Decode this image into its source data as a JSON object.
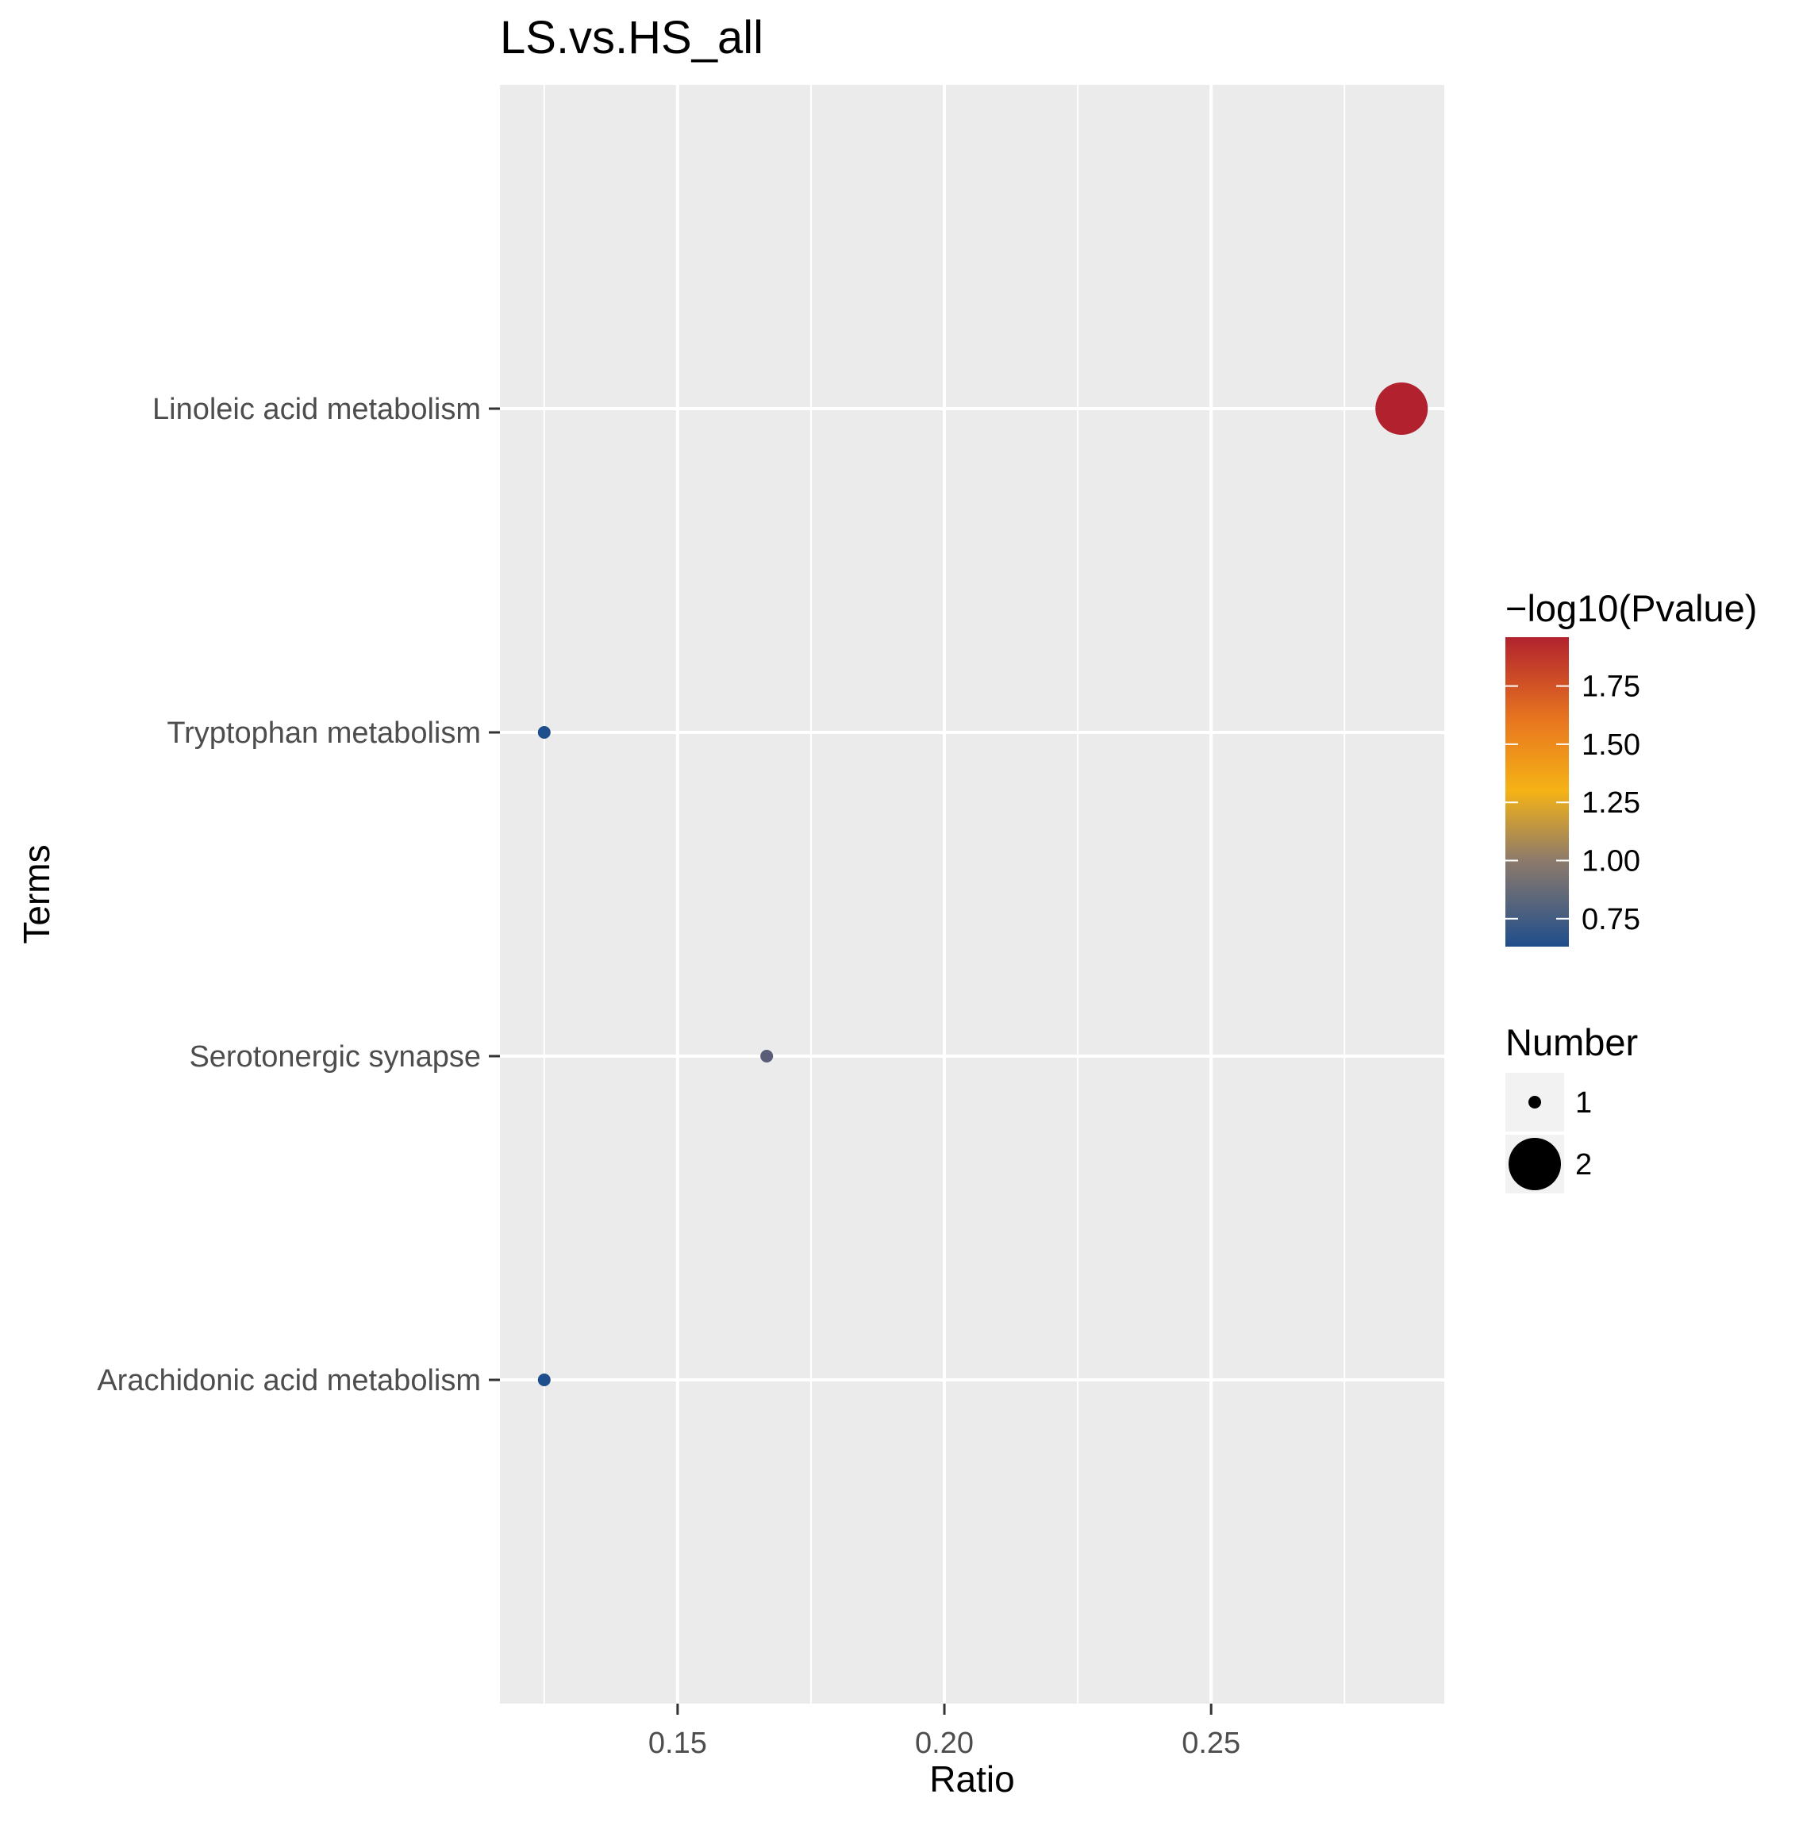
{
  "chart_data": {
    "type": "scatter",
    "title": "LS.vs.HS_all",
    "xlabel": "Ratio",
    "ylabel": "Terms",
    "xlim": [
      0.1167,
      0.2937
    ],
    "x_ticks": [
      0.15,
      0.2,
      0.25
    ],
    "x_tick_labels": [
      "0.15",
      "0.20",
      "0.25"
    ],
    "x_minor_gridlines": [
      0.125,
      0.175,
      0.225,
      0.275
    ],
    "categories": [
      "Linoleic acid metabolism",
      "Tryptophan metabolism",
      "Serotonergic synapse",
      "Arachidonic acid metabolism"
    ],
    "points": [
      {
        "term": "Linoleic acid metabolism",
        "ratio": 0.2857,
        "number": 2,
        "neg_log10_pvalue": 1.95,
        "color": "#b2222e"
      },
      {
        "term": "Tryptophan metabolism",
        "ratio": 0.125,
        "number": 1,
        "neg_log10_pvalue": 0.7,
        "color": "#1f4e8c"
      },
      {
        "term": "Serotonergic synapse",
        "ratio": 0.1667,
        "number": 1,
        "neg_log10_pvalue": 0.92,
        "color": "#5a5d78"
      },
      {
        "term": "Arachidonic acid metabolism",
        "ratio": 0.125,
        "number": 1,
        "neg_log10_pvalue": 0.7,
        "color": "#1f4e8c"
      }
    ],
    "grid": true,
    "panel_background": "#ebebeb",
    "grid_color": "#ffffff",
    "color_legend": {
      "title": "−log10(Pvalue)",
      "range": [
        0.63,
        1.96
      ],
      "ticks": [
        0.75,
        1.0,
        1.25,
        1.5,
        1.75
      ],
      "tick_labels": [
        "0.75",
        "1.00",
        "1.25",
        "1.50",
        "1.75"
      ],
      "gradient_stops": [
        {
          "value": 0.63,
          "color": "#1f4e8c"
        },
        {
          "value": 1.0,
          "color": "#8c7a6b"
        },
        {
          "value": 1.3,
          "color": "#f5b316"
        },
        {
          "value": 1.6,
          "color": "#e8771f"
        },
        {
          "value": 1.96,
          "color": "#b2222e"
        }
      ]
    },
    "size_legend": {
      "title": "Number",
      "entries": [
        {
          "label": "1",
          "value": 1
        },
        {
          "label": "2",
          "value": 2
        }
      ]
    },
    "legend_placement": "right"
  }
}
